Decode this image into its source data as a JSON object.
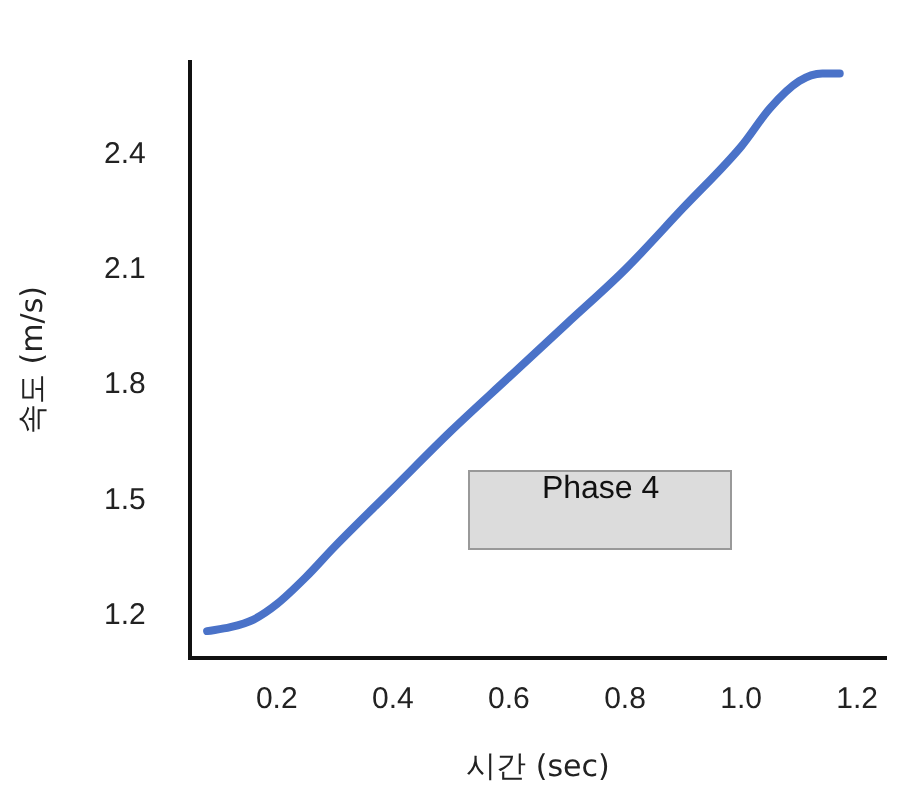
{
  "chart_data": {
    "type": "line",
    "xlabel": "시간 (sec)",
    "ylabel": "속도 (m/s)",
    "annotations": [
      "Phase 4"
    ],
    "x": [
      0.08,
      0.12,
      0.16,
      0.2,
      0.25,
      0.3,
      0.4,
      0.5,
      0.6,
      0.7,
      0.8,
      0.9,
      1.0,
      1.05,
      1.1,
      1.14,
      1.17
    ],
    "series": [
      {
        "color": "#4a72c8",
        "values": [
          1.16,
          1.17,
          1.19,
          1.23,
          1.3,
          1.38,
          1.53,
          1.68,
          1.82,
          1.96,
          2.1,
          2.26,
          2.42,
          2.52,
          2.59,
          2.61,
          2.61
        ]
      }
    ],
    "xlim": [
      0.05,
      1.25
    ],
    "xticks": [
      0.2,
      0.4,
      0.6,
      0.8,
      {
        "value": 1,
        "label": "1.0"
      },
      1.2
    ],
    "ylim": [
      1.09,
      2.64
    ],
    "yticks": [
      1.2,
      1.5,
      1.8,
      2.1,
      2.4
    ],
    "grid": false,
    "legend": false,
    "marker": "none",
    "line_style": "solid"
  }
}
